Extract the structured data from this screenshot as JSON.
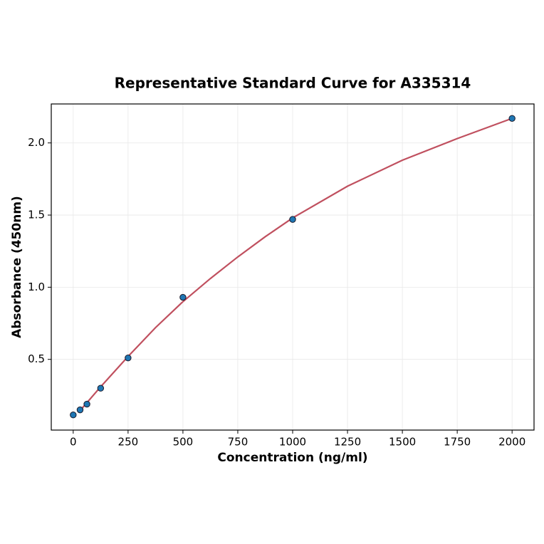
{
  "chart_data": {
    "type": "scatter",
    "title": "Representative Standard Curve for A335314",
    "x_label": "Concentration (ng/ml)",
    "y_label": "Absorbance (450nm)",
    "xlim": [
      -100,
      2100
    ],
    "ylim": [
      0.01,
      2.27
    ],
    "xticks": [
      0,
      250,
      500,
      750,
      1000,
      1250,
      1500,
      1750,
      2000
    ],
    "yticks": [
      {
        "value": 0.5,
        "label": "0.5"
      },
      {
        "value": 1.0,
        "label": "1.0"
      },
      {
        "value": 1.5,
        "label": "1.5"
      },
      {
        "value": 2.0,
        "label": "2.0"
      }
    ],
    "grid": true,
    "series": [
      {
        "type": "line",
        "color": "#c0505f",
        "x": [
          31.25,
          62.5,
          125,
          250,
          375,
          500,
          625,
          750,
          875,
          1000,
          1250,
          1500,
          1750,
          2000
        ],
        "values": [
          0.145,
          0.2,
          0.31,
          0.52,
          0.72,
          0.9,
          1.06,
          1.21,
          1.35,
          1.48,
          1.7,
          1.88,
          2.03,
          2.17
        ]
      },
      {
        "type": "scatter",
        "color": "#1f77b4",
        "x": [
          0,
          31.25,
          62.5,
          125,
          250,
          500,
          1000,
          2000
        ],
        "values": [
          0.115,
          0.15,
          0.19,
          0.3,
          0.51,
          0.93,
          1.47,
          2.17
        ]
      }
    ]
  }
}
